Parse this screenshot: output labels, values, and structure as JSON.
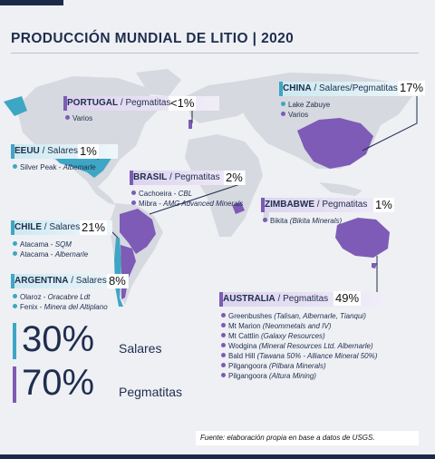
{
  "title": "PRODUCCIÓN MUNDIAL DE LITIO | 2020",
  "colors": {
    "salares": "#3ea6c4",
    "pegmatitas": "#7d5bb6",
    "map": "#d6d9df",
    "dark": "#1f2d4e"
  },
  "countries": {
    "portugal": {
      "name": "PORTUGAL",
      "type": " / Pegmatitas",
      "pct": "<1%",
      "items": [
        {
          "text": "Varios",
          "note": ""
        }
      ]
    },
    "eeuu": {
      "name": "EEUU",
      "type": " / Salares",
      "pct": "1%",
      "items": [
        {
          "text": "Silver Peak - ",
          "note": "Albemarle"
        }
      ]
    },
    "brasil": {
      "name": "BRASIL",
      "type": " / Pegmatitas",
      "pct": "2%",
      "items": [
        {
          "text": "Cachoeira - ",
          "note": "CBL"
        },
        {
          "text": "Mibra - ",
          "note": "AMG Advanced Minerals"
        }
      ]
    },
    "chile": {
      "name": "CHILE",
      "type": " / Salares",
      "pct": "21%",
      "items": [
        {
          "text": "Atacama - ",
          "note": "SQM"
        },
        {
          "text": "Atacama - ",
          "note": "Albernarle"
        }
      ]
    },
    "argentina": {
      "name": "ARGENTINA",
      "type": " / Salares",
      "pct": "8%",
      "items": [
        {
          "text": "Olaroz - ",
          "note": "Oracabre Ldt"
        },
        {
          "text": "Fenix - ",
          "note": "Minera del Altiplano"
        }
      ]
    },
    "china": {
      "name": "CHINA",
      "type": " / Salares/Pegmatitas",
      "pct": "17%",
      "items": [
        {
          "text": "Lake Zabuye",
          "note": ""
        },
        {
          "text": "Varios",
          "note": ""
        }
      ]
    },
    "zimbabwe": {
      "name": "ZIMBABWE",
      "type": " / Pegmatitas",
      "pct": "1%",
      "items": [
        {
          "text": "Bikita ",
          "note": "(Bikita Minerals)"
        }
      ]
    },
    "australia": {
      "name": "AUSTRALIA",
      "type": " / Pegmatitas",
      "pct": "49%",
      "items": [
        {
          "text": "Greenbushes ",
          "note": "(Talisan, Albernarle, Tianqui)"
        },
        {
          "text": "Mt Marion ",
          "note": "(Neommetals and IV)"
        },
        {
          "text": "Mt Cattlin ",
          "note": "(Galaxy Resources)"
        },
        {
          "text": "Wodgina ",
          "note": "(Mineral Resources Ltd. Albernarle)"
        },
        {
          "text": "Bald Hill ",
          "note": "(Tawana 50% - Alliance Mineral 50%)"
        },
        {
          "text": "Pilgangoora ",
          "note": "(Pilbara Minerals)"
        },
        {
          "text": "Pilgangoora ",
          "note": "(Altura Mining)"
        }
      ]
    }
  },
  "summary": [
    {
      "value": "30%",
      "label": "Salares",
      "color": "#3ea6c4"
    },
    {
      "value": "70%",
      "label": "Pegmatitas",
      "color": "#7d5bb6"
    }
  ],
  "source": "Fuente: elaboración propia en base a datos de USGS."
}
